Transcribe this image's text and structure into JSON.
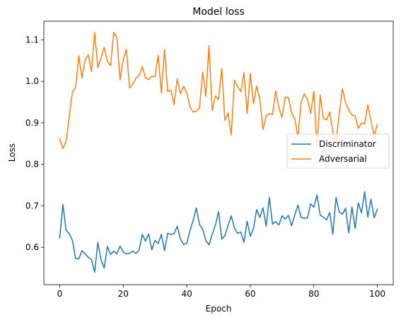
{
  "chart_data": {
    "type": "line",
    "title": "Model loss",
    "xlabel": "Epoch",
    "ylabel": "Loss",
    "xlim": [
      -5,
      105
    ],
    "ylim": [
      0.51,
      1.145
    ],
    "xticks": [
      0,
      20,
      40,
      60,
      80,
      100
    ],
    "yticks": [
      0.6,
      0.7,
      0.8,
      0.9,
      1.0,
      1.1
    ],
    "xtick_labels": [
      "0",
      "20",
      "40",
      "60",
      "80",
      "100"
    ],
    "ytick_labels": [
      "0.6",
      "0.7",
      "0.8",
      "0.9",
      "1.0",
      "1.1"
    ],
    "grid": false,
    "legend_position": "center-right",
    "series": [
      {
        "name": "Discriminator",
        "color": "#1f77b4",
        "x": [
          0,
          1,
          2,
          3,
          4,
          5,
          6,
          7,
          8,
          9,
          10,
          11,
          12,
          13,
          14,
          15,
          16,
          17,
          18,
          19,
          20,
          21,
          22,
          23,
          24,
          25,
          26,
          27,
          28,
          29,
          30,
          31,
          32,
          33,
          34,
          35,
          36,
          37,
          38,
          39,
          40,
          41,
          42,
          43,
          44,
          45,
          46,
          47,
          48,
          49,
          50,
          51,
          52,
          53,
          54,
          55,
          56,
          57,
          58,
          59,
          60,
          61,
          62,
          63,
          64,
          65,
          66,
          67,
          68,
          69,
          70,
          71,
          72,
          73,
          74,
          75,
          76,
          77,
          78,
          79,
          80,
          81,
          82,
          83,
          84,
          85,
          86,
          87,
          88,
          89,
          90,
          91,
          92,
          93,
          94,
          95,
          96,
          97,
          98,
          99,
          100
        ],
        "values": [
          0.623,
          0.703,
          0.641,
          0.633,
          0.617,
          0.573,
          0.572,
          0.592,
          0.584,
          0.576,
          0.57,
          0.54,
          0.612,
          0.57,
          0.55,
          0.602,
          0.583,
          0.591,
          0.584,
          0.603,
          0.589,
          0.584,
          0.586,
          0.591,
          0.585,
          0.594,
          0.631,
          0.615,
          0.632,
          0.594,
          0.617,
          0.609,
          0.631,
          0.592,
          0.634,
          0.631,
          0.633,
          0.651,
          0.62,
          0.607,
          0.61,
          0.64,
          0.665,
          0.695,
          0.655,
          0.644,
          0.616,
          0.606,
          0.631,
          0.653,
          0.686,
          0.62,
          0.628,
          0.653,
          0.676,
          0.646,
          0.634,
          0.637,
          0.612,
          0.663,
          0.627,
          0.645,
          0.691,
          0.672,
          0.695,
          0.651,
          0.72,
          0.656,
          0.662,
          0.654,
          0.676,
          0.668,
          0.677,
          0.652,
          0.678,
          0.702,
          0.672,
          0.67,
          0.671,
          0.705,
          0.697,
          0.726,
          0.678,
          0.673,
          0.666,
          0.684,
          0.632,
          0.72,
          0.685,
          0.68,
          0.694,
          0.635,
          0.697,
          0.646,
          0.707,
          0.683,
          0.734,
          0.673,
          0.716,
          0.671,
          0.692
        ]
      },
      {
        "name": "Adversarial",
        "color": "#ff7f0e",
        "x": [
          0,
          1,
          2,
          3,
          4,
          5,
          6,
          7,
          8,
          9,
          10,
          11,
          12,
          13,
          14,
          15,
          16,
          17,
          18,
          19,
          20,
          21,
          22,
          23,
          24,
          25,
          26,
          27,
          28,
          29,
          30,
          31,
          32,
          33,
          34,
          35,
          36,
          37,
          38,
          39,
          40,
          41,
          42,
          43,
          44,
          45,
          46,
          47,
          48,
          49,
          50,
          51,
          52,
          53,
          54,
          55,
          56,
          57,
          58,
          59,
          60,
          61,
          62,
          63,
          64,
          65,
          66,
          67,
          68,
          69,
          70,
          71,
          72,
          73,
          74,
          75,
          76,
          77,
          78,
          79,
          80,
          81,
          82,
          83,
          84,
          85,
          86,
          87,
          88,
          89,
          90,
          91,
          92,
          93,
          94,
          95,
          96,
          97,
          98,
          99,
          100
        ],
        "values": [
          0.862,
          0.838,
          0.855,
          0.915,
          0.975,
          0.985,
          1.062,
          1.008,
          1.052,
          1.064,
          1.024,
          1.118,
          1.034,
          1.056,
          1.082,
          1.048,
          1.038,
          1.118,
          1.106,
          1.004,
          1.052,
          1.077,
          0.984,
          0.993,
          1.008,
          1.014,
          1.036,
          1.008,
          1.005,
          1.012,
          1.012,
          1.063,
          0.972,
          1.077,
          0.975,
          0.979,
          0.944,
          1.006,
          0.97,
          0.988,
          0.972,
          0.938,
          0.926,
          0.928,
          0.936,
          1.022,
          0.964,
          1.086,
          0.93,
          0.965,
          0.956,
          1.031,
          0.906,
          0.924,
          0.871,
          1.003,
          0.987,
          0.975,
          1.021,
          0.922,
          1.019,
          0.946,
          0.989,
          0.957,
          0.884,
          0.917,
          0.922,
          0.92,
          0.977,
          0.936,
          0.913,
          0.962,
          0.961,
          0.923,
          0.91,
          0.865,
          0.95,
          0.97,
          0.956,
          0.922,
          0.976,
          0.841,
          0.967,
          0.911,
          0.907,
          0.926,
          0.878,
          0.85,
          0.922,
          0.982,
          0.948,
          0.931,
          0.919,
          0.917,
          0.887,
          0.899,
          0.898,
          0.943,
          0.905,
          0.869,
          0.896
        ]
      }
    ]
  }
}
